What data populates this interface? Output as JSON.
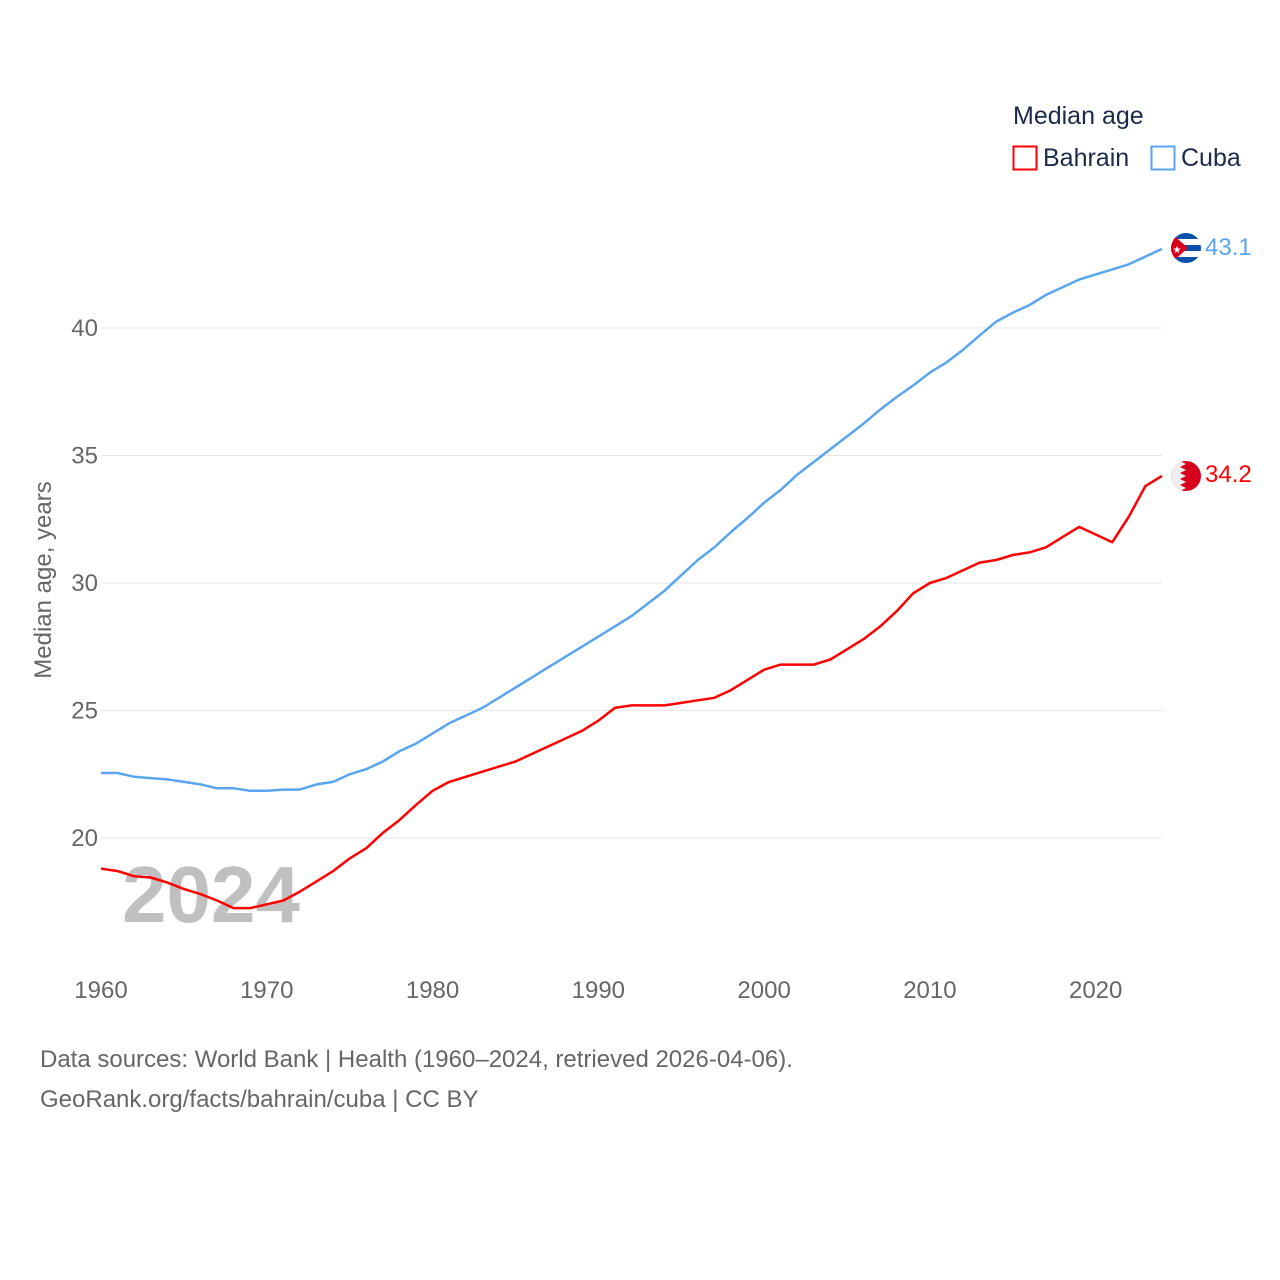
{
  "chart_data": {
    "type": "line",
    "title": "",
    "xlabel": "",
    "ylabel": "Median age, years",
    "xlim": [
      1960,
      2024
    ],
    "ylim": [
      16,
      43.5
    ],
    "grid": true,
    "x_ticks": [
      1960,
      1970,
      1980,
      1990,
      2000,
      2010,
      2020
    ],
    "y_ticks": [
      20,
      25,
      30,
      35,
      40
    ],
    "legend": {
      "title": "Median age",
      "placement": "top-right"
    },
    "watermark_year": "2024",
    "x": [
      1960,
      1961,
      1962,
      1963,
      1964,
      1965,
      1966,
      1967,
      1968,
      1969,
      1970,
      1971,
      1972,
      1973,
      1974,
      1975,
      1976,
      1977,
      1978,
      1979,
      1980,
      1981,
      1982,
      1983,
      1984,
      1985,
      1986,
      1987,
      1988,
      1989,
      1990,
      1991,
      1992,
      1993,
      1994,
      1995,
      1996,
      1997,
      1998,
      1999,
      2000,
      2001,
      2002,
      2003,
      2004,
      2005,
      2006,
      2007,
      2008,
      2009,
      2010,
      2011,
      2012,
      2013,
      2014,
      2015,
      2016,
      2017,
      2018,
      2019,
      2020,
      2021,
      2022,
      2023,
      2024
    ],
    "series": [
      {
        "name": "Bahrain",
        "color": "#ff0000",
        "end_label": "34.2",
        "values": [
          18.8,
          18.7,
          18.5,
          18.45,
          18.25,
          18.0,
          17.8,
          17.55,
          17.25,
          17.25,
          17.4,
          17.55,
          17.9,
          18.3,
          18.7,
          19.2,
          19.6,
          20.2,
          20.7,
          21.3,
          21.85,
          22.2,
          22.4,
          22.6,
          22.8,
          23.0,
          23.3,
          23.6,
          23.9,
          24.2,
          24.6,
          25.1,
          25.2,
          25.2,
          25.2,
          25.3,
          25.4,
          25.5,
          25.8,
          26.2,
          26.6,
          26.8,
          26.8,
          26.8,
          27.0,
          27.4,
          27.8,
          28.3,
          28.9,
          29.6,
          30.0,
          30.2,
          30.5,
          30.8,
          30.9,
          31.1,
          31.2,
          31.4,
          31.8,
          32.2,
          31.9,
          31.6,
          32.6,
          33.8,
          34.2
        ]
      },
      {
        "name": "Cuba",
        "color": "#5aa5ef",
        "end_label": "43.1",
        "values": [
          22.55,
          22.55,
          22.4,
          22.35,
          22.3,
          22.2,
          22.1,
          21.95,
          21.95,
          21.85,
          21.85,
          21.9,
          21.9,
          22.1,
          22.2,
          22.5,
          22.7,
          23.0,
          23.4,
          23.7,
          24.1,
          24.5,
          24.8,
          25.1,
          25.5,
          25.9,
          26.3,
          26.7,
          27.1,
          27.5,
          27.9,
          28.3,
          28.7,
          29.2,
          29.7,
          30.3,
          30.9,
          31.4,
          32.0,
          32.55,
          33.15,
          33.65,
          34.25,
          34.75,
          35.25,
          35.75,
          36.25,
          36.8,
          37.3,
          37.75,
          38.25,
          38.65,
          39.15,
          39.7,
          40.25,
          40.6,
          40.9,
          41.3,
          41.6,
          41.9,
          42.1,
          42.3,
          42.5,
          42.8,
          43.1
        ]
      }
    ]
  },
  "footer": {
    "line1": "Data sources: World Bank | Health (1960–2024, retrieved 2026-04-06).",
    "line2": "GeoRank.org/facts/bahrain/cuba | CC BY"
  }
}
